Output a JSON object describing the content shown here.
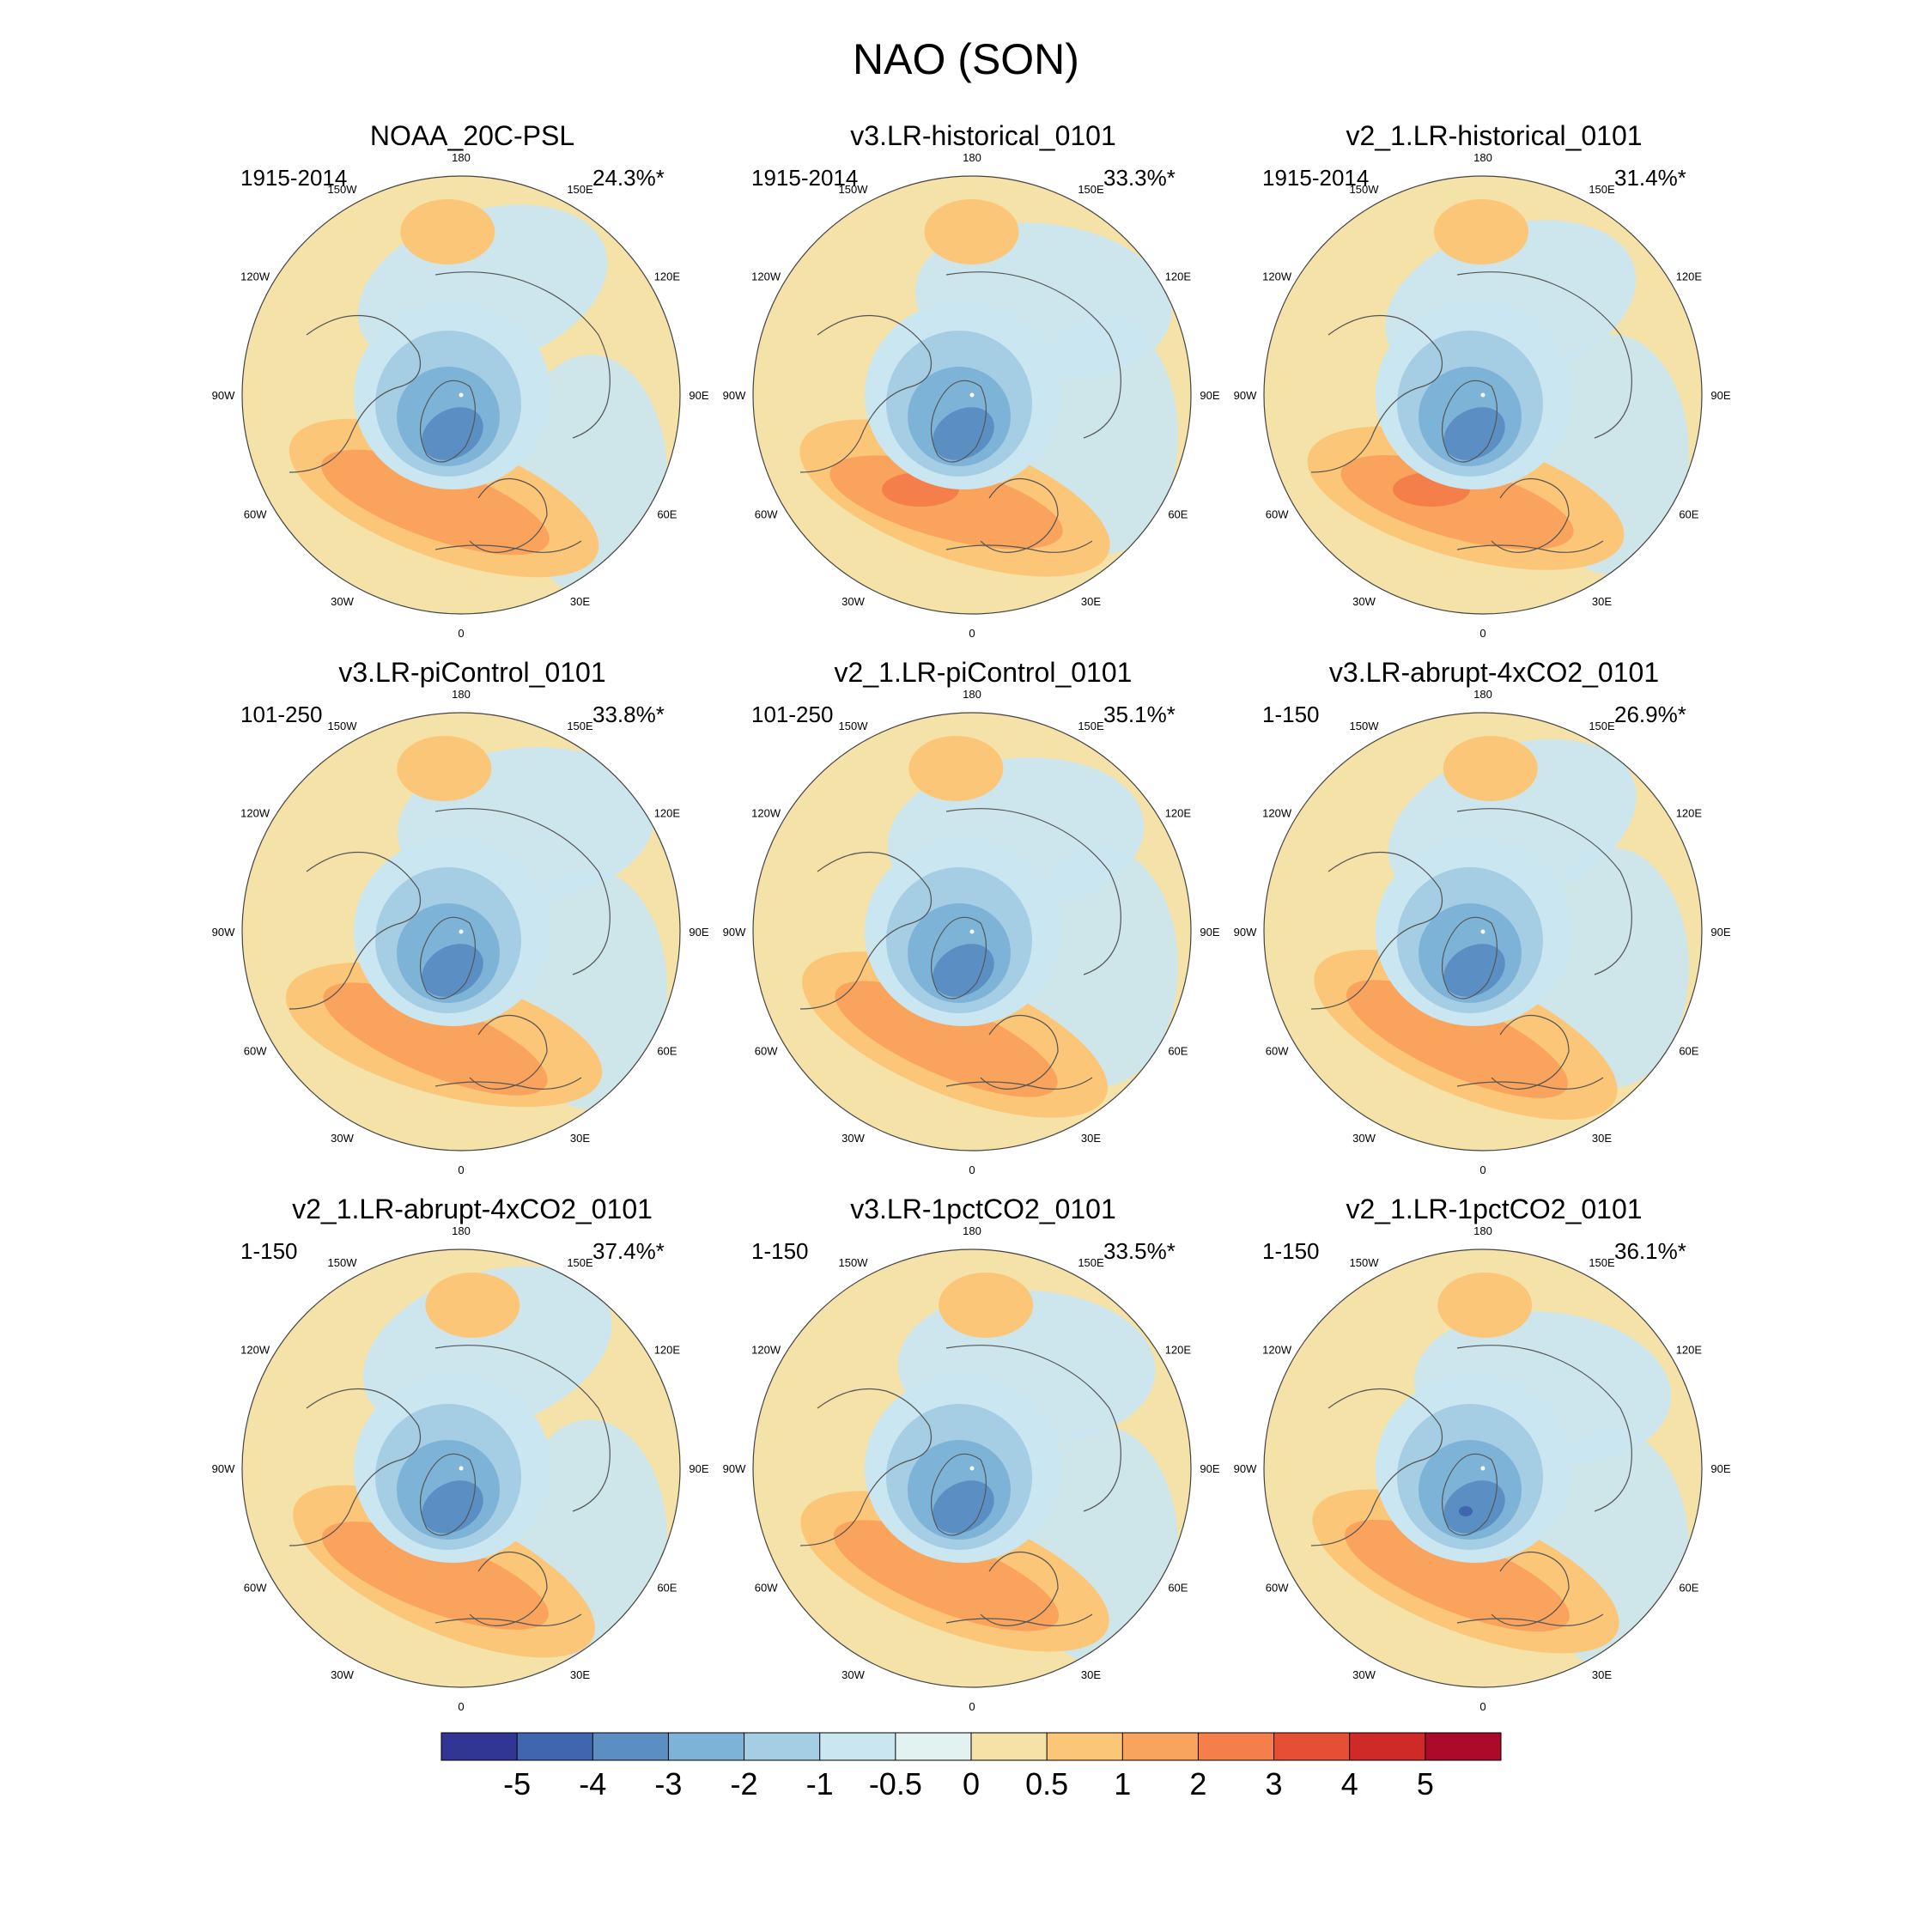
{
  "title": "NAO (SON)",
  "panels": [
    {
      "title": "NOAA_20C-PSL",
      "period": "1915-2014",
      "variance": "24.3%*"
    },
    {
      "title": "v3.LR-historical_0101",
      "period": "1915-2014",
      "variance": "33.3%*"
    },
    {
      "title": "v2_1.LR-historical_0101",
      "period": "1915-2014",
      "variance": "31.4%*"
    },
    {
      "title": "v3.LR-piControl_0101",
      "period": "101-250",
      "variance": "33.8%*"
    },
    {
      "title": "v2_1.LR-piControl_0101",
      "period": "101-250",
      "variance": "35.1%*"
    },
    {
      "title": "v3.LR-abrupt-4xCO2_0101",
      "period": "1-150",
      "variance": "26.9%*"
    },
    {
      "title": "v2_1.LR-abrupt-4xCO2_0101",
      "period": "1-150",
      "variance": "37.4%*"
    },
    {
      "title": "v3.LR-1pctCO2_0101",
      "period": "1-150",
      "variance": "33.5%*"
    },
    {
      "title": "v2_1.LR-1pctCO2_0101",
      "period": "1-150",
      "variance": "36.1%*"
    }
  ],
  "longitude_labels": [
    "180",
    "150E",
    "120E",
    "90E",
    "60E",
    "30E",
    "0",
    "30W",
    "60W",
    "90W",
    "120W",
    "150W"
  ],
  "colorbar": {
    "colors": [
      "#313695",
      "#4066b0",
      "#5b8fc4",
      "#7eb3d8",
      "#a5cde3",
      "#cae6f0",
      "#e2f2f1",
      "#f5e2a8",
      "#fcc678",
      "#f9a35c",
      "#f47f4b",
      "#e55034",
      "#cf2a27",
      "#ac0a29"
    ],
    "tick_labels": [
      "-5",
      "-4",
      "-3",
      "-2",
      "-1",
      "-0.5",
      "0",
      "0.5",
      "1",
      "2",
      "3",
      "4",
      "5"
    ]
  },
  "anomaly_colors": {
    "neg_weak": "#cae6f0",
    "neg_mid": "#a5cde3",
    "neg_strong": "#7eb3d8",
    "neg_core": "#5b8fc4",
    "neg_max": "#4066b0",
    "pos_base": "#f5e2a8",
    "pos_weak": "#fcc678",
    "pos_mid": "#f9a35c",
    "pos_strong": "#f47f4b",
    "near_zero": "#e2f2f1"
  }
}
